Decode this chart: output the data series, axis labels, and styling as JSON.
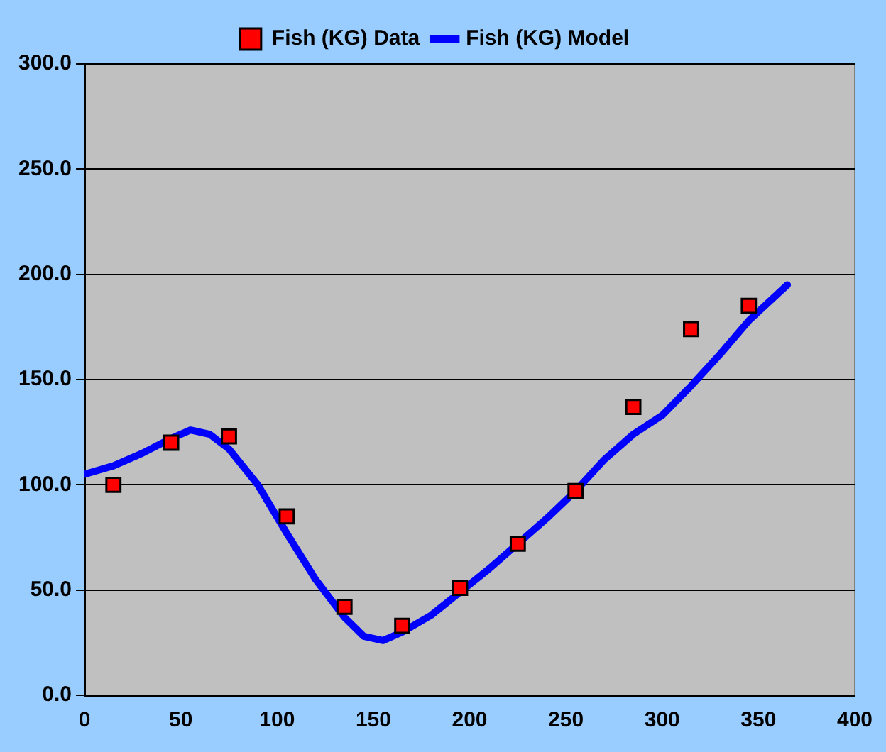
{
  "chart_data": {
    "type": "scatter",
    "xlim": [
      0,
      400
    ],
    "xticks": [
      0,
      50,
      100,
      150,
      200,
      250,
      300,
      350,
      400
    ],
    "ylim": [
      0,
      300
    ],
    "yticks": [
      {
        "value": 0,
        "label": "0.0"
      },
      {
        "value": 50,
        "label": "50.0"
      },
      {
        "value": 100,
        "label": "100.0"
      },
      {
        "value": 150,
        "label": "150.0"
      },
      {
        "value": 200,
        "label": "200.0"
      },
      {
        "value": 250,
        "label": "250.0"
      },
      {
        "value": 300,
        "label": "300.0"
      }
    ],
    "grid": "y",
    "legend": "top",
    "series": [
      {
        "name": "Fish (KG) Data",
        "marker": "square",
        "color": "#ff0000",
        "x": [
          15,
          45,
          75,
          105,
          135,
          165,
          195,
          225,
          255,
          285,
          315,
          345
        ],
        "values": [
          100,
          120,
          123,
          85,
          42,
          33,
          51,
          72,
          97,
          137,
          174,
          185
        ]
      },
      {
        "name": "Fish (KG) Model",
        "type": "line",
        "marker": "none",
        "color": "#0000ff",
        "x": [
          0,
          15,
          30,
          45,
          55,
          65,
          75,
          90,
          105,
          120,
          135,
          145,
          155,
          165,
          180,
          195,
          210,
          225,
          240,
          255,
          270,
          285,
          300,
          315,
          330,
          345,
          365
        ],
        "values": [
          105,
          109,
          115,
          122,
          126,
          124,
          117,
          100,
          77,
          55,
          37,
          28,
          26,
          30,
          38,
          49,
          60,
          72,
          84,
          97,
          112,
          124,
          133,
          147,
          162,
          178,
          195
        ]
      }
    ]
  }
}
